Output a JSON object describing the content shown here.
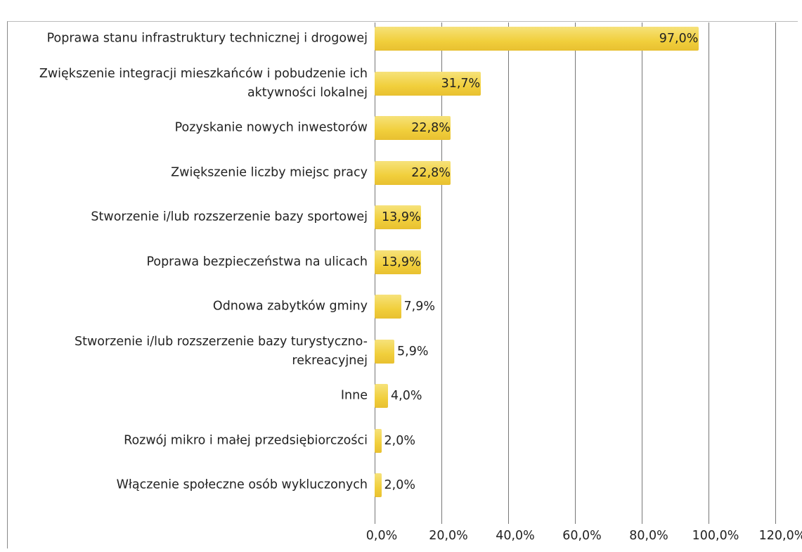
{
  "chart_data": {
    "type": "bar",
    "orientation": "horizontal",
    "categories": [
      "Poprawa stanu infrastruktury technicznej i drogowej",
      "Zwiększenie integracji mieszkańców i pobudzenie ich aktywności lokalnej",
      "Pozyskanie nowych inwestorów",
      "Zwiększenie liczby miejsc pracy",
      "Stworzenie i/lub rozszerzenie bazy sportowej",
      "Poprawa bezpieczeństwa na ulicach",
      "Odnowa zabytków gminy",
      "Stworzenie i/lub rozszerzenie bazy turystyczno-rekreacyjnej",
      "Inne",
      "Rozwój mikro i małej przedsiębiorczości",
      "Włączenie społeczne osób wykluczonych"
    ],
    "values": [
      97.0,
      31.7,
      22.8,
      22.8,
      13.9,
      13.9,
      7.9,
      5.9,
      4.0,
      2.0,
      2.0
    ],
    "value_labels": [
      "97,0%",
      "31,7%",
      "22,8%",
      "22,8%",
      "13,9%",
      "13,9%",
      "7,9%",
      "5,9%",
      "4,0%",
      "2,0%",
      "2,0%"
    ],
    "color": "#f1cf3c",
    "xlim": [
      0,
      120
    ],
    "xticks": [
      {
        "value": 0,
        "label": "0,0%"
      },
      {
        "value": 20,
        "label": "20,0%"
      },
      {
        "value": 40,
        "label": "40,0%"
      },
      {
        "value": 60,
        "label": "60,0%"
      },
      {
        "value": 80,
        "label": "80,0%"
      },
      {
        "value": 100,
        "label": "100,0%"
      },
      {
        "value": 120,
        "label": "120,0%"
      }
    ],
    "grid": true
  }
}
